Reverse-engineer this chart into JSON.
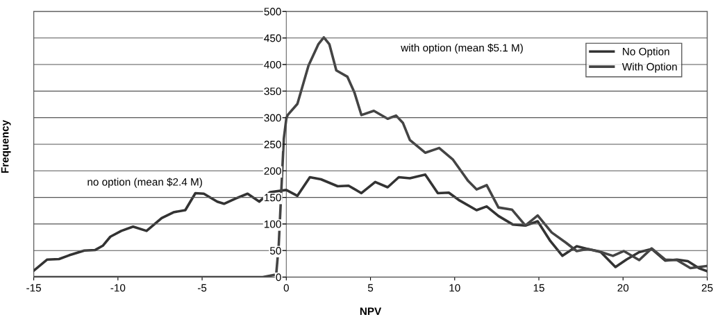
{
  "chart_data": {
    "type": "line",
    "xlabel": "NPV",
    "ylabel": "Frequency",
    "xlim": [
      -15,
      25
    ],
    "xticks": [
      -15,
      -10,
      -5,
      0,
      5,
      10,
      15,
      20,
      25
    ],
    "ylim": [
      0,
      500
    ],
    "yticks": [
      0,
      50,
      100,
      150,
      200,
      250,
      300,
      350,
      400,
      450,
      500
    ],
    "grid": "y",
    "legend": "top right",
    "line_style": "solid",
    "marker": "none",
    "annotations": [
      "no option (mean $2.4 M)",
      "with option (mean $5.1 M)"
    ],
    "series": [
      {
        "name": "No Option",
        "color": "#333333",
        "x": [
          -15,
          -14.2,
          -13.5,
          -12.9,
          -12.0,
          -11.35,
          -10.9,
          -10.45,
          -9.8,
          -9.1,
          -8.3,
          -7.4,
          -6.7,
          -6.0,
          -5.4,
          -4.9,
          -4.1,
          -3.7,
          -3.0,
          -2.3,
          -1.6,
          -0.96,
          0,
          0.66,
          1.4,
          2.06,
          3.05,
          3.7,
          4.46,
          5.28,
          6.02,
          6.68,
          7.34,
          8.25,
          9.0,
          9.65,
          10.3,
          11.3,
          11.9,
          12.6,
          13.45,
          14.2,
          14.93,
          15.68,
          16.4,
          17.25,
          17.9,
          18.65,
          19.55,
          20.2,
          20.96,
          21.7,
          22.5,
          23.2,
          23.85,
          24.5,
          25
        ],
        "values": [
          12,
          33,
          34,
          41,
          50,
          51,
          59,
          76,
          87,
          95,
          87,
          111,
          122,
          126,
          158,
          157,
          142,
          138,
          148,
          157,
          142,
          160,
          164,
          153,
          188,
          184,
          171,
          172,
          158,
          179,
          169,
          188,
          186,
          193,
          158,
          159,
          144,
          126,
          133,
          115,
          99,
          97,
          105,
          68,
          40,
          58,
          53,
          48,
          19,
          33,
          47,
          53,
          31,
          33,
          30,
          17,
          11
        ]
      },
      {
        "name": "With Option",
        "color": "#444444",
        "x": [
          -15,
          -1.4,
          -0.6,
          -0.45,
          -0.3,
          -0.15,
          0,
          0.08,
          0.66,
          1.32,
          1.9,
          2.23,
          2.56,
          2.97,
          3.63,
          4.04,
          4.46,
          5.2,
          6.02,
          6.52,
          6.93,
          7.34,
          8.25,
          9.08,
          9.9,
          10.8,
          11.3,
          11.9,
          12.6,
          13.4,
          14.2,
          14.93,
          15.76,
          16.6,
          17.25,
          17.9,
          18.7,
          19.4,
          20.05,
          20.96,
          21.7,
          22.5,
          23.2,
          24.0,
          25
        ],
        "values": [
          0,
          0,
          5,
          60,
          160,
          260,
          298,
          305,
          326,
          398,
          438,
          451,
          438,
          389,
          377,
          348,
          305,
          313,
          298,
          304,
          290,
          258,
          234,
          243,
          221,
          181,
          165,
          173,
          131,
          127,
          97,
          116,
          84,
          65,
          49,
          53,
          47,
          40,
          49,
          32,
          54,
          33,
          32,
          17,
          21
        ]
      }
    ]
  }
}
